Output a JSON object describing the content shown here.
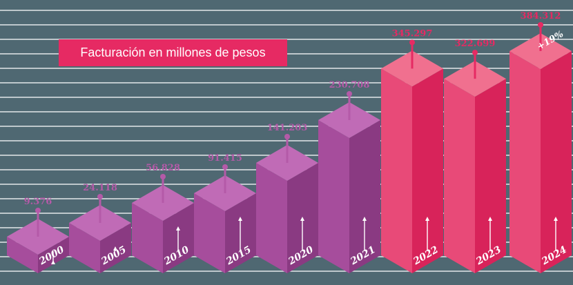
{
  "legend": {
    "title": "Facturación en millones de pesos"
  },
  "colors": {
    "background": "#4f6872",
    "gridline": "#ffffff",
    "purple_front": "#a64d9c",
    "purple_side": "#8a3a82",
    "purple_top": "#c06bb6",
    "pink_front": "#e84a78",
    "pink_side": "#d8235a",
    "pink_top": "#f0708f",
    "purple_label": "#b45aa8",
    "pink_label": "#e62a63",
    "legend_bg": "#e62a63"
  },
  "chart_data": {
    "type": "bar",
    "title": "Facturación en millones de pesos",
    "categories": [
      "2000",
      "2005",
      "2010",
      "2015",
      "2020",
      "2021",
      "2022",
      "2023",
      "2024"
    ],
    "series": [
      {
        "values": [
          9376,
          24118,
          56828,
          91415,
          141203,
          230708,
          345297,
          322699,
          384312
        ],
        "labels": [
          "9.376",
          "24.118",
          "56.828",
          "91.415",
          "141.203",
          "230.708",
          "345.297",
          "322.699",
          "384.312"
        ]
      }
    ],
    "highlight_categories": [
      "2022",
      "2023",
      "2024"
    ],
    "annotation": {
      "category": "2024",
      "text": "+19%"
    },
    "grid": true
  }
}
